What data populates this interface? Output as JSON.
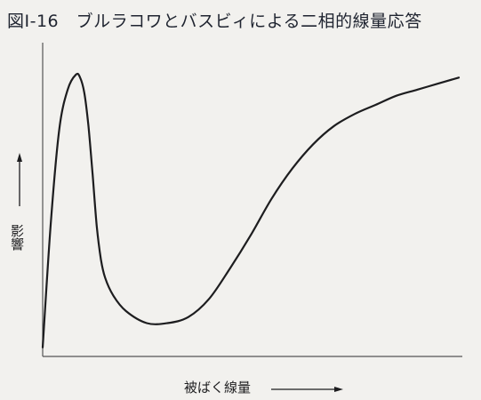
{
  "figure": {
    "title": "図Ⅰ-16　ブルラコワとバスビィによる二相的線量応答"
  },
  "chart_data": {
    "type": "line",
    "title": "図Ⅰ-16　ブルラコワとバスビィによる二相的線量応答",
    "xlabel": "被ばく線量",
    "ylabel": "影響",
    "xlim": [
      0,
      100
    ],
    "ylim": [
      0,
      100
    ],
    "grid": false,
    "legend": "none",
    "series": [
      {
        "color": "#1d1d1f",
        "x": [
          0,
          2,
          4,
          6,
          8,
          9,
          10,
          11,
          12,
          13,
          14,
          15,
          17,
          20,
          25,
          30,
          35,
          40,
          45,
          50,
          55,
          60,
          65,
          70,
          75,
          80,
          85,
          90,
          95,
          100
        ],
        "y": [
          3,
          45,
          75,
          88,
          93,
          92,
          87,
          76,
          60,
          43,
          32,
          26,
          20,
          15,
          11,
          11,
          13,
          19,
          29,
          40,
          52,
          62,
          70,
          76,
          80,
          83,
          86,
          88,
          90,
          92
        ]
      }
    ]
  }
}
